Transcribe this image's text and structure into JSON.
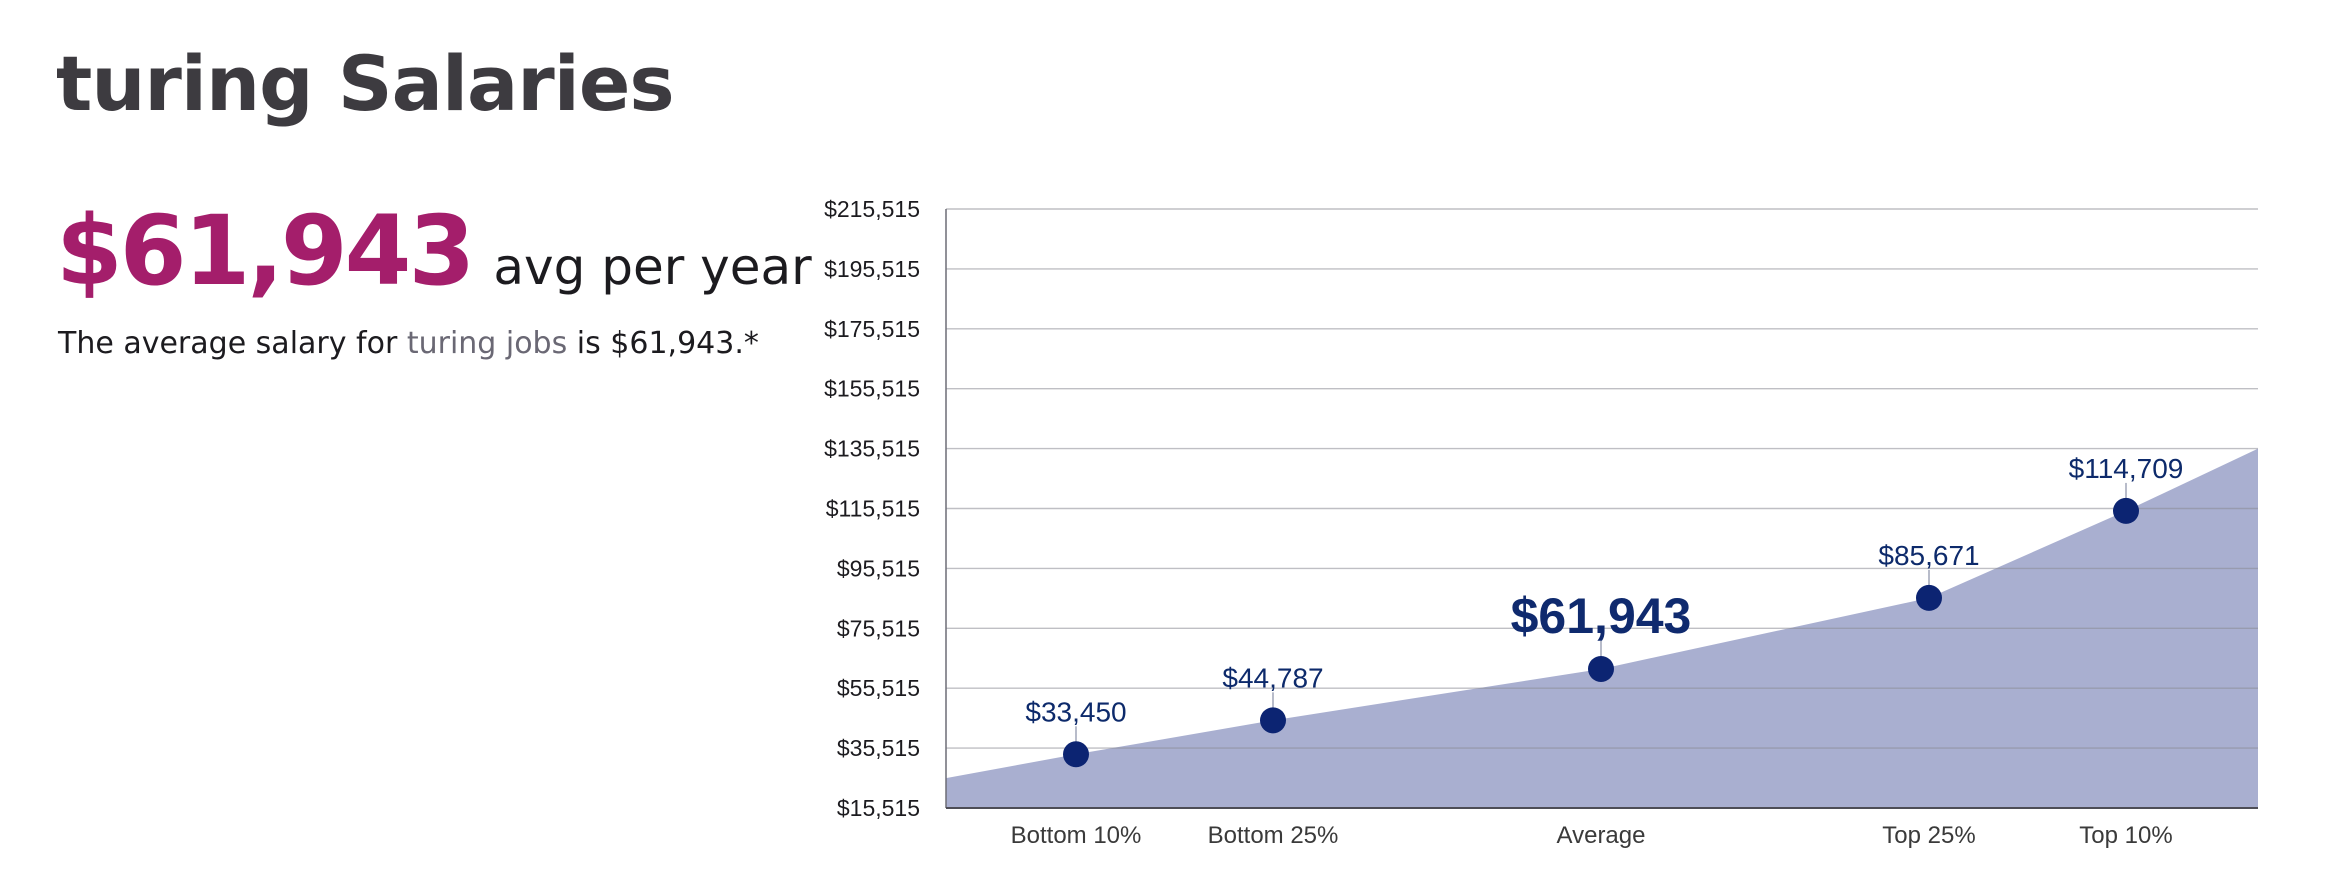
{
  "page": {
    "title": "turing Salaries",
    "average_amount": "$61,943",
    "average_unit": "avg per year",
    "description_before": "The average salary for ",
    "description_link": "turing jobs",
    "description_after": " is $61,943.*"
  },
  "colors": {
    "accent": "#a41e6b",
    "title": "#3d3b40",
    "area_fill": "#a9afd0",
    "point": "#0c2472",
    "label": "#0d2a6b"
  },
  "chart_data": {
    "type": "area",
    "categories": [
      "Bottom 10%",
      "Bottom 25%",
      "Average",
      "Top 25%",
      "Top 10%"
    ],
    "values": [
      33450,
      44787,
      61943,
      85671,
      114709
    ],
    "data_labels": [
      "$33,450",
      "$44,787",
      "$61,943",
      "$85,671",
      "$114,709"
    ],
    "highlight_index": 2,
    "ylim": [
      15515,
      215515
    ],
    "yticks": [
      15515,
      35515,
      55515,
      75515,
      95515,
      115515,
      135515,
      155515,
      175515,
      195515,
      215515
    ],
    "ytick_labels": [
      "$15,515",
      "$35,515",
      "$55,515",
      "$75,515",
      "$95,515",
      "$115,515",
      "$135,515",
      "$155,515",
      "$175,515",
      "$195,515",
      "$215,515"
    ],
    "area_start_value": 25500,
    "area_end_value": 135515,
    "grid": true,
    "title": "",
    "xlabel": "",
    "ylabel": ""
  }
}
